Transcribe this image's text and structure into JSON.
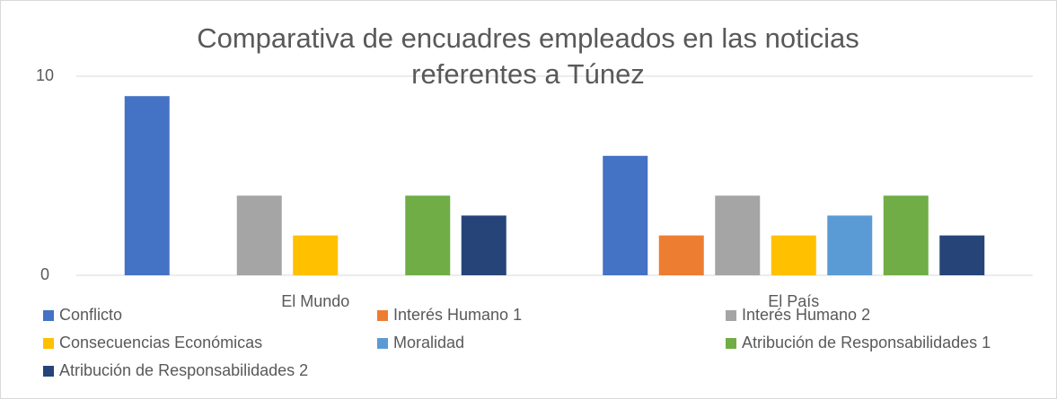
{
  "chart_data": {
    "type": "bar",
    "title": "Comparativa de encuadres empleados en las noticias referentes a Túnez",
    "categories": [
      "El Mundo",
      "El País"
    ],
    "series": [
      {
        "name": "Conflicto",
        "color": "#4472c4",
        "values": [
          9,
          6
        ]
      },
      {
        "name": "Interés Humano 1",
        "color": "#ed7d31",
        "values": [
          0,
          2
        ]
      },
      {
        "name": "Interés Humano 2",
        "color": "#a5a5a5",
        "values": [
          4,
          4
        ]
      },
      {
        "name": "Consecuencias Económicas",
        "color": "#ffc000",
        "values": [
          2,
          2
        ]
      },
      {
        "name": "Moralidad",
        "color": "#5b9bd5",
        "values": [
          0,
          3
        ]
      },
      {
        "name": "Atribución de Responsabilidades 1",
        "color": "#70ad47",
        "values": [
          4,
          4
        ]
      },
      {
        "name": "Atribución de Responsabilidades 2",
        "color": "#264478",
        "values": [
          3,
          2
        ]
      }
    ],
    "ylim": [
      0,
      10
    ],
    "yticks": [
      0,
      10
    ],
    "grid": true,
    "legend": "bottom"
  }
}
